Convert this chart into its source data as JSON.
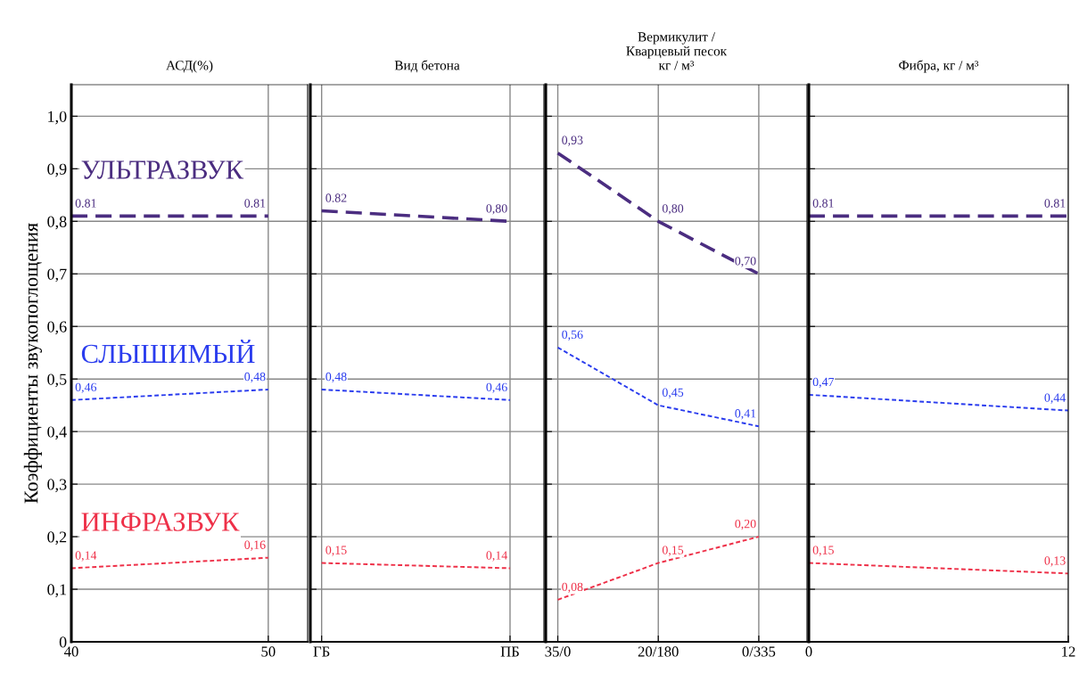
{
  "chart_data": [
    {
      "type": "line",
      "title": "АСД(%)",
      "ylabel": "Коэффициенты звукопоглощения",
      "x": [
        40,
        50
      ],
      "xlim": [
        40,
        52
      ],
      "xticks": [
        40,
        50
      ],
      "ylim": [
        0,
        1.06
      ],
      "yticks": [
        0,
        {
          "value": 0.1,
          "label": "0,1"
        },
        {
          "value": 0.2,
          "label": "0,2"
        },
        {
          "value": 0.3,
          "label": "0,3"
        },
        {
          "value": 0.4,
          "label": "0,4"
        },
        {
          "value": 0.5,
          "label": "0,5"
        },
        {
          "value": 0.6,
          "label": "0,6"
        },
        {
          "value": 0.7,
          "label": "0,7"
        },
        {
          "value": 0.8,
          "label": "0,8"
        },
        {
          "value": 0.9,
          "label": "0,9"
        },
        {
          "value": 1.0,
          "label": "1,0"
        }
      ],
      "grid": true,
      "series": [
        {
          "name": "УЛЬТРАЗВУК",
          "color": "#4b2d80",
          "line_style": "dashed",
          "values": [
            0.81,
            0.81
          ],
          "value_labels": [
            "0.81",
            "0.81"
          ]
        },
        {
          "name": "СЛЫШИМЫЙ",
          "color": "#2a3cee",
          "line_style": "dotted",
          "values": [
            0.46,
            0.48
          ],
          "value_labels": [
            "0,46",
            "0,48"
          ]
        },
        {
          "name": "ИНФРАЗВУК",
          "color": "#ee3048",
          "line_style": "dotted",
          "values": [
            0.14,
            0.16
          ],
          "value_labels": [
            "0,14",
            "0,16"
          ]
        }
      ]
    },
    {
      "type": "line",
      "title": "Вид бетона",
      "categories": [
        "ГБ",
        "ПБ"
      ],
      "ylim": [
        0,
        1.06
      ],
      "yticks": [
        0,
        0.1,
        0.2,
        0.3,
        0.4,
        0.5,
        0.6,
        0.7,
        0.8,
        0.9,
        1.0
      ],
      "tick_labels": "x",
      "grid": true,
      "series": [
        {
          "color": "#4b2d80",
          "line_style": "dashed",
          "values": [
            0.82,
            0.8
          ],
          "value_labels": [
            "0.82",
            "0,80"
          ]
        },
        {
          "color": "#2a3cee",
          "line_style": "dotted",
          "values": [
            0.48,
            0.46
          ],
          "value_labels": [
            "0,48",
            "0,46"
          ]
        },
        {
          "color": "#ee3048",
          "line_style": "dotted",
          "values": [
            0.15,
            0.14
          ],
          "value_labels": [
            "0,15",
            "0,14"
          ]
        }
      ]
    },
    {
      "type": "line",
      "title": "Вермикулит /\nКварцевый песок\nкг / м³",
      "categories": [
        "35/0",
        "20/180",
        "0/335"
      ],
      "ylim": [
        0,
        1.06
      ],
      "yticks": [
        0,
        0.1,
        0.2,
        0.3,
        0.4,
        0.5,
        0.6,
        0.7,
        0.8,
        0.9,
        1.0
      ],
      "tick_labels": "x",
      "grid": true,
      "series": [
        {
          "color": "#4b2d80",
          "line_style": "dashed",
          "values": [
            0.93,
            0.8,
            0.7
          ],
          "value_labels": [
            "0,93",
            "0,80",
            "0,70"
          ]
        },
        {
          "color": "#2a3cee",
          "line_style": "dotted",
          "values": [
            0.56,
            0.45,
            0.41
          ],
          "value_labels": [
            "0,56",
            "0,45",
            "0,41"
          ]
        },
        {
          "color": "#ee3048",
          "line_style": "dotted",
          "values": [
            0.08,
            0.15,
            0.2
          ],
          "value_labels": [
            "0,08",
            "0,15",
            "0,20"
          ]
        }
      ]
    },
    {
      "type": "line",
      "title": "Фибра, кг / м³",
      "x": [
        0,
        12
      ],
      "xlim": [
        0,
        12
      ],
      "xticks": [
        0,
        12
      ],
      "ylim": [
        0,
        1.06
      ],
      "yticks": [
        0,
        0.1,
        0.2,
        0.3,
        0.4,
        0.5,
        0.6,
        0.7,
        0.8,
        0.9,
        1.0
      ],
      "tick_labels": "x",
      "grid": true,
      "series": [
        {
          "color": "#4b2d80",
          "line_style": "dashed",
          "values": [
            0.81,
            0.81
          ],
          "value_labels": [
            "0.81",
            "0.81"
          ]
        },
        {
          "color": "#2a3cee",
          "line_style": "dotted",
          "values": [
            0.47,
            0.44
          ],
          "value_labels": [
            "0,47",
            "0,44"
          ]
        },
        {
          "color": "#ee3048",
          "line_style": "dotted",
          "values": [
            0.15,
            0.13
          ],
          "value_labels": [
            "0,15",
            "0,13"
          ]
        }
      ]
    }
  ]
}
